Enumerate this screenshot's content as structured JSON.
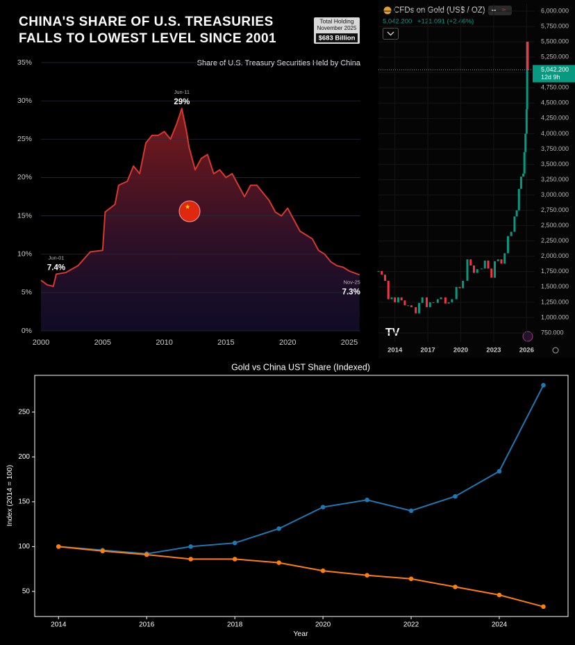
{
  "chart_data": [
    {
      "type": "area",
      "title_lines": [
        "CHINA'S SHARE OF U.S. TREASURIES",
        "FALLS TO LOWEST LEVEL SINCE 2001"
      ],
      "subtitle": "Share of U.S. Treasury Securities Held by China",
      "holding_box": {
        "title": "Total Holding",
        "date": "November 2025",
        "amount": "$683 Billion"
      },
      "color": "#d63a2f",
      "x": [
        2000,
        2000.5,
        2001,
        2001.24,
        2002,
        2003,
        2004,
        2005,
        2005.2,
        2006,
        2006.3,
        2007,
        2007.5,
        2008,
        2008.5,
        2009,
        2009.5,
        2010,
        2010.5,
        2011,
        2011.42,
        2011.8,
        2012,
        2012.5,
        2013,
        2013.5,
        2014,
        2014.5,
        2015,
        2015.5,
        2016,
        2016.5,
        2017,
        2017.5,
        2018,
        2018.5,
        2019,
        2019.5,
        2020,
        2020.5,
        2021,
        2021.5,
        2022,
        2022.5,
        2023,
        2023.5,
        2024,
        2024.5,
        2025,
        2025.83
      ],
      "values": [
        6.6,
        6.0,
        5.8,
        7.4,
        7.6,
        8.5,
        10.3,
        10.5,
        15.5,
        16.5,
        19,
        19.5,
        21.5,
        20.5,
        24.5,
        25.5,
        25.5,
        26,
        25,
        27,
        29,
        26,
        24,
        21,
        22.5,
        23,
        20.5,
        21,
        20,
        20.5,
        19,
        17.5,
        19,
        19,
        18,
        17,
        15.5,
        15,
        16,
        14.5,
        13,
        12.5,
        12,
        10.5,
        10,
        9,
        8.5,
        8.3,
        7.8,
        7.3
      ],
      "annotations": [
        {
          "x": 2011.42,
          "y": 29,
          "label": "Jun-11",
          "text": "29%"
        },
        {
          "x": 2001.24,
          "y": 7.4,
          "label": "Jun-01",
          "text": "7.4%"
        },
        {
          "x": 2025.83,
          "y": 7.3,
          "label": "Nov-25",
          "text": "7.3%"
        }
      ],
      "xlim": [
        2000,
        2026
      ],
      "xticks": [
        2000,
        2005,
        2010,
        2015,
        2020,
        2025
      ],
      "ylim": [
        0,
        35
      ],
      "yticks": [
        {
          "value": 0,
          "label": "0%"
        },
        {
          "value": 5,
          "label": "5%"
        },
        {
          "value": 10,
          "label": "10%"
        },
        {
          "value": 15,
          "label": "15%"
        },
        {
          "value": 20,
          "label": "20%"
        },
        {
          "value": 25,
          "label": "25%"
        },
        {
          "value": 30,
          "label": "30%"
        },
        {
          "value": 35,
          "label": "35%"
        }
      ],
      "grid": true
    },
    {
      "type": "candlestick",
      "title": "CFDs on Gold (US$ / OZ)",
      "last_price": {
        "value": 5042.2,
        "label": "5,042.200"
      },
      "change": "+121.091 (+2.46%)",
      "countdown": "12d 9h",
      "up_color": "#089981",
      "down_color": "#f23645",
      "x": [
        2012.5,
        2012.8,
        2013.1,
        2013.4,
        2013.7,
        2014.0,
        2014.3,
        2014.6,
        2014.9,
        2015.2,
        2015.5,
        2015.9,
        2016.2,
        2016.5,
        2016.9,
        2017.2,
        2017.5,
        2017.9,
        2018.2,
        2018.6,
        2018.9,
        2019.2,
        2019.6,
        2019.9,
        2020.2,
        2020.6,
        2020.9,
        2021.2,
        2021.5,
        2021.9,
        2022.2,
        2022.5,
        2022.8,
        2023.1,
        2023.4,
        2023.7,
        2024.0,
        2024.3,
        2024.6,
        2024.9,
        2025.1,
        2025.3,
        2025.5,
        2025.7,
        2025.8,
        2025.9,
        2026.0,
        2026.05,
        2026.1
      ],
      "values": [
        1760,
        1700,
        1600,
        1300,
        1330,
        1250,
        1330,
        1280,
        1200,
        1200,
        1170,
        1070,
        1240,
        1330,
        1170,
        1250,
        1240,
        1300,
        1330,
        1230,
        1250,
        1300,
        1500,
        1480,
        1600,
        1950,
        1850,
        1730,
        1790,
        1800,
        1930,
        1800,
        1650,
        1920,
        1950,
        1880,
        2050,
        2330,
        2400,
        2650,
        2750,
        3100,
        3300,
        3350,
        3700,
        4000,
        4400,
        5500,
        5042.2
      ],
      "xlim": [
        2012.5,
        2026.74
      ],
      "xticks": [
        2014,
        2017,
        2020,
        2023,
        2026
      ],
      "ylim": [
        625,
        6125
      ],
      "yticks": [
        {
          "value": 750,
          "label": "750.000"
        },
        {
          "value": 1000,
          "label": "1,000.000"
        },
        {
          "value": 1250,
          "label": "1,250.000"
        },
        {
          "value": 1500,
          "label": "1,500.000"
        },
        {
          "value": 1750,
          "label": "1,750.000"
        },
        {
          "value": 2000,
          "label": "2,000.000"
        },
        {
          "value": 2250,
          "label": "2,250.000"
        },
        {
          "value": 2500,
          "label": "2,500.000"
        },
        {
          "value": 2750,
          "label": "2,750.000"
        },
        {
          "value": 3000,
          "label": "3,000.000"
        },
        {
          "value": 3250,
          "label": "3,250.000"
        },
        {
          "value": 3500,
          "label": "3,500.000"
        },
        {
          "value": 3750,
          "label": "3,750.000"
        },
        {
          "value": 4000,
          "label": "4,000.000"
        },
        {
          "value": 4250,
          "label": "4,250.000"
        },
        {
          "value": 4500,
          "label": "4,500.000"
        },
        {
          "value": 4750,
          "label": "4,750.000"
        },
        {
          "value": 5000,
          "label": "5,000.000"
        },
        {
          "value": 5250,
          "label": "5,250.000"
        },
        {
          "value": 5500,
          "label": "5,500.000"
        },
        {
          "value": 5750,
          "label": "5,750.000"
        },
        {
          "value": 6000,
          "label": "6,000.000"
        }
      ],
      "grid": true
    },
    {
      "type": "line",
      "title": "Gold vs China UST Share (Indexed)",
      "xlabel": "Year",
      "ylabel": "Index (2014 = 100)",
      "x": [
        2014,
        2015,
        2016,
        2017,
        2018,
        2019,
        2020,
        2021,
        2022,
        2023,
        2024,
        2025
      ],
      "series": [
        {
          "color": "#1f77b4",
          "values": [
            100,
            96,
            92,
            100,
            104,
            120,
            144,
            152,
            140,
            156,
            184,
            280
          ]
        },
        {
          "color": "#ff7f0e",
          "values": [
            100,
            95,
            91,
            86,
            86,
            82,
            73,
            68,
            64,
            55,
            46,
            33
          ]
        }
      ],
      "xlim": [
        2013.46,
        2025.56
      ],
      "xticks": [
        2014,
        2016,
        2018,
        2020,
        2022,
        2024
      ],
      "ylim": [
        22,
        291
      ],
      "yticks": [
        50,
        100,
        150,
        200,
        250
      ],
      "grid": false
    }
  ]
}
